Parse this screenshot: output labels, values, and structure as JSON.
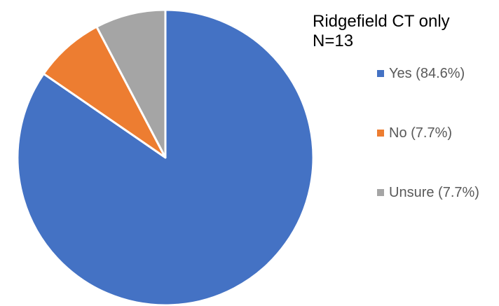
{
  "chart_data": {
    "type": "pie",
    "title": "Ridgefield CT only\nN=13",
    "categories": [
      "Yes",
      "No",
      "Unsure"
    ],
    "values": [
      84.6,
      7.7,
      7.7
    ],
    "colors": [
      "#4472C4",
      "#ED7D31",
      "#A5A5A5"
    ],
    "start_angle": "12 o'clock",
    "direction": "clockwise",
    "legend": {
      "placement": "right",
      "items": [
        {
          "label": "Yes (84.6%)",
          "color": "#4472C4"
        },
        {
          "label": "No (7.7%)",
          "color": "#ED7D31"
        },
        {
          "label": "Unsure (7.7%)",
          "color": "#A5A5A5"
        }
      ]
    }
  }
}
